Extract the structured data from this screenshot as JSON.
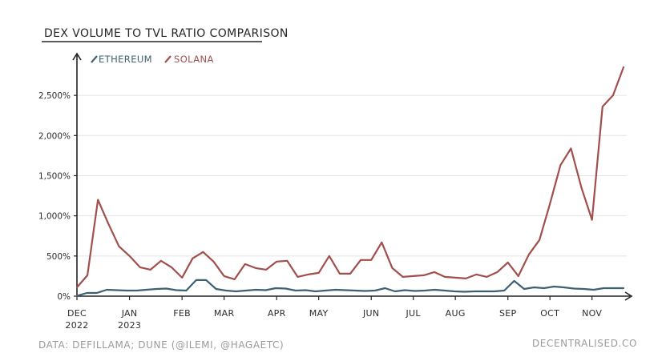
{
  "chart_data": {
    "type": "line",
    "title": "DEX VOLUME TO TVL RATIO COMPARISON",
    "xlabel": "",
    "ylabel": "",
    "ylim": [
      0,
      2850
    ],
    "y_ticks": [
      {
        "value": 0,
        "label": "0%"
      },
      {
        "value": 500,
        "label": "500%"
      },
      {
        "value": 1000,
        "label": "1,000%"
      },
      {
        "value": 1500,
        "label": "1,500%"
      },
      {
        "value": 2000,
        "label": "2,000%"
      },
      {
        "value": 2500,
        "label": "2,500%"
      }
    ],
    "x_ticks": [
      {
        "index": 0,
        "label": "DEC",
        "sublabel": "2022"
      },
      {
        "index": 5,
        "label": "JAN",
        "sublabel": "2023"
      },
      {
        "index": 10,
        "label": "FEB",
        "sublabel": ""
      },
      {
        "index": 14,
        "label": "MAR",
        "sublabel": ""
      },
      {
        "index": 19,
        "label": "APR",
        "sublabel": ""
      },
      {
        "index": 23,
        "label": "MAY",
        "sublabel": ""
      },
      {
        "index": 28,
        "label": "JUN",
        "sublabel": ""
      },
      {
        "index": 32,
        "label": "JUL",
        "sublabel": ""
      },
      {
        "index": 36,
        "label": "AUG",
        "sublabel": ""
      },
      {
        "index": 41,
        "label": "SEP",
        "sublabel": ""
      },
      {
        "index": 45,
        "label": "OCT",
        "sublabel": ""
      },
      {
        "index": 49,
        "label": "NOV",
        "sublabel": ""
      }
    ],
    "grid": "horizontal",
    "legend_position": "top-left",
    "series": [
      {
        "name": "ETHEREUM",
        "color": "#3d6073",
        "values": [
          5,
          40,
          40,
          80,
          75,
          70,
          70,
          80,
          90,
          95,
          75,
          70,
          200,
          200,
          90,
          70,
          60,
          70,
          80,
          75,
          100,
          95,
          70,
          75,
          60,
          70,
          80,
          75,
          70,
          65,
          70,
          100,
          60,
          75,
          65,
          70,
          80,
          70,
          60,
          55,
          60,
          60,
          60,
          70,
          190,
          90,
          110,
          100,
          120,
          110,
          95,
          90,
          80,
          100,
          100,
          100
        ]
      },
      {
        "name": "SOLANA",
        "color": "#a14f4d",
        "values": [
          110,
          260,
          1200,
          900,
          620,
          500,
          360,
          330,
          440,
          360,
          230,
          470,
          550,
          430,
          250,
          210,
          400,
          350,
          330,
          430,
          440,
          240,
          270,
          290,
          500,
          280,
          280,
          450,
          450,
          670,
          350,
          240,
          250,
          260,
          300,
          240,
          230,
          220,
          270,
          240,
          300,
          420,
          250,
          520,
          700,
          1150,
          1630,
          1840,
          1350,
          950,
          2360,
          2500,
          2850
        ]
      }
    ]
  },
  "footer": {
    "source": "DATA: DEFILLAMA; DUNE (@ILEMI, @HAGAETC)",
    "brand": "DECENTRALISED.CO"
  }
}
